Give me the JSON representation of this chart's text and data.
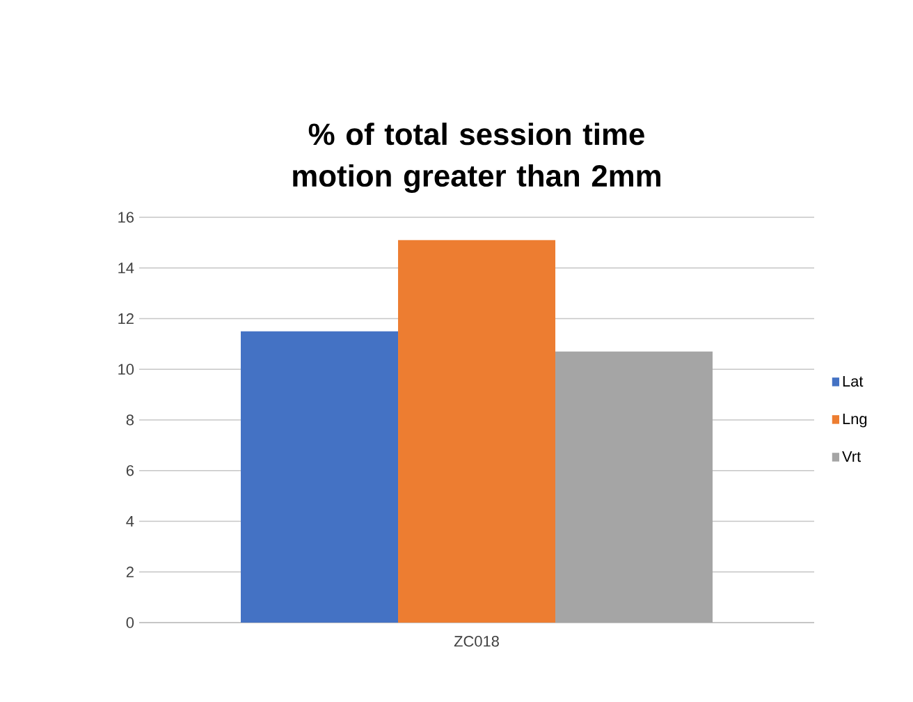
{
  "chart_data": {
    "type": "bar",
    "title": "% of total session time motion greater than 2mm",
    "categories": [
      "ZC018"
    ],
    "series": [
      {
        "name": "Lat",
        "color": "#4472c4",
        "values": [
          11.5
        ]
      },
      {
        "name": "Lng",
        "color": "#ed7d31",
        "values": [
          15.1
        ]
      },
      {
        "name": "Vrt",
        "color": "#a5a5a5",
        "values": [
          10.7
        ]
      }
    ],
    "ylim": [
      0,
      16
    ],
    "yticks": [
      0,
      2,
      4,
      6,
      8,
      10,
      12,
      14,
      16
    ],
    "grid": "y",
    "legend": "right"
  }
}
